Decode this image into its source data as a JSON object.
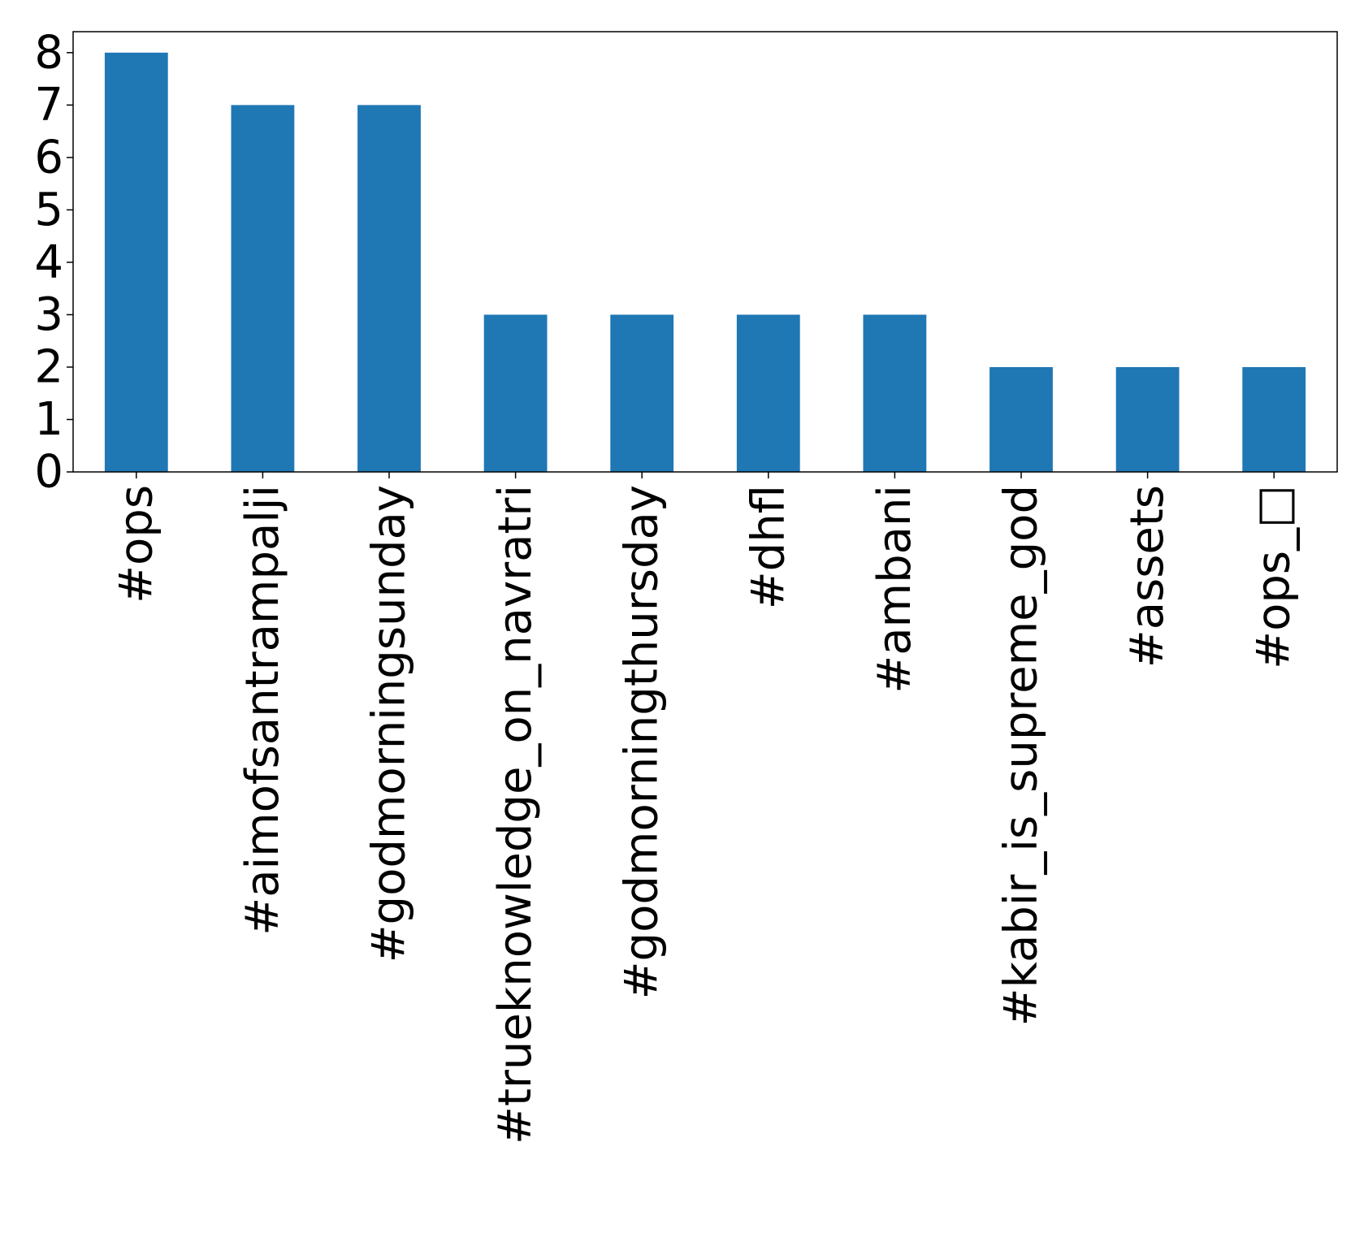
{
  "chart_data": {
    "type": "bar",
    "title": "",
    "xlabel": "",
    "ylabel": "",
    "categories": [
      "#ops",
      "#aimofsantrampalji",
      "#godmorningsunday",
      "#trueknowledge_on_navratri",
      "#godmorningthursday",
      "#dhfl",
      "#ambani",
      "#kabir_is_supreme_god",
      "#assets",
      "#ops_□"
    ],
    "values": [
      8,
      7,
      7,
      3,
      3,
      3,
      3,
      2,
      2,
      2
    ],
    "ylim": [
      0,
      8.4
    ],
    "yticks": [
      0,
      1,
      2,
      3,
      4,
      5,
      6,
      7,
      8
    ],
    "grid": false,
    "legend": "none",
    "bar_color": "#1f77b4"
  }
}
